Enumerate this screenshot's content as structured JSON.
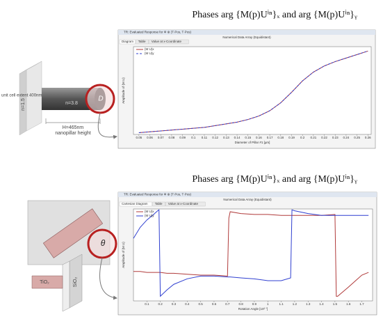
{
  "chart_data": [
    {
      "type": "line",
      "title": "Phases arg {M(p)Uⁱⁿ}ₓ and arg {M(p)Uⁱⁿ}ᵧ",
      "window_title": "TR: Evaluated Response for Φ ⊗ (T·Pos, T·Pos)",
      "subtitle": "Numerical Data Array (Equidistant)",
      "tabs": [
        "Diagram",
        "Table",
        "Value at x-Coordinate"
      ],
      "x_label": "Diameter of Pillar #1  [µm]",
      "y_label": "Amplitude of {M U}",
      "xlim": [
        0.045,
        0.263
      ],
      "ylim": [
        0,
        1
      ],
      "xticks": [
        0.05,
        0.06,
        0.07,
        0.08,
        0.09,
        0.1,
        0.11,
        0.12,
        0.13,
        0.14,
        0.15,
        0.16,
        0.17,
        0.18,
        0.19,
        0.2,
        0.21,
        0.22,
        0.23,
        0.24,
        0.25,
        0.26
      ],
      "x": [
        0.05,
        0.06,
        0.07,
        0.08,
        0.09,
        0.1,
        0.11,
        0.12,
        0.13,
        0.14,
        0.15,
        0.16,
        0.17,
        0.18,
        0.19,
        0.2,
        0.21,
        0.22,
        0.23,
        0.24,
        0.25,
        0.26
      ],
      "series": [
        {
          "name": "{M U}x",
          "color": "#b03a3a",
          "dash": false,
          "values": [
            0.02,
            0.03,
            0.04,
            0.05,
            0.06,
            0.07,
            0.08,
            0.1,
            0.12,
            0.14,
            0.17,
            0.21,
            0.27,
            0.36,
            0.48,
            0.61,
            0.71,
            0.78,
            0.83,
            0.87,
            0.91,
            0.95
          ]
        },
        {
          "name": "{M U}y",
          "color": "#2f3fd0",
          "dash": true,
          "values": [
            0.02,
            0.03,
            0.04,
            0.05,
            0.06,
            0.07,
            0.08,
            0.1,
            0.12,
            0.14,
            0.17,
            0.21,
            0.27,
            0.36,
            0.48,
            0.61,
            0.71,
            0.78,
            0.83,
            0.87,
            0.91,
            0.95
          ]
        }
      ]
    },
    {
      "type": "line",
      "title": "Phases arg {M(p)Uⁱⁿ}ₓ and arg {M(p)Uⁱⁿ}ᵧ",
      "window_title": "TR: Evaluated Response for Φ ⊗ (T·Pos, T·Pos)",
      "subtitle": "Numerical Data Array (Equidistant)",
      "tabs": [
        "Cartesian Diagram",
        "Table",
        "Value at x-Coordinate"
      ],
      "x_label": "Rotation Angle  [10² °]",
      "y_label": "Amplitude of {M U}",
      "xlim": [
        0,
        1.78
      ],
      "ylim": [
        0,
        1
      ],
      "xticks": [
        0.1,
        0.2,
        0.3,
        0.4,
        0.5,
        0.6,
        0.7,
        0.8,
        0.9,
        1,
        1.1,
        1.2,
        1.3,
        1.4,
        1.5,
        1.6,
        1.7
      ],
      "x": [
        0,
        0.05,
        0.1,
        0.15,
        0.18,
        0.19,
        0.2,
        0.25,
        0.3,
        0.4,
        0.5,
        0.6,
        0.7,
        0.71,
        0.72,
        0.8,
        0.9,
        1,
        1.1,
        1.17,
        1.18,
        1.2,
        1.3,
        1.4,
        1.5,
        1.51,
        1.52,
        1.6,
        1.7,
        1.75
      ],
      "series": [
        {
          "name": "{M U}x",
          "color": "#b03a3a",
          "dash": false,
          "values": [
            0.32,
            0.32,
            0.31,
            0.31,
            0.31,
            0.31,
            0.31,
            0.3,
            0.3,
            0.29,
            0.28,
            0.28,
            0.27,
            0.9,
            0.97,
            0.95,
            0.94,
            0.94,
            0.93,
            0.93,
            0.93,
            0.93,
            0.93,
            0.93,
            0.94,
            0.05,
            0.05,
            0.15,
            0.28,
            0.31
          ]
        },
        {
          "name": "{M U}y",
          "color": "#2f3fd0",
          "dash": false,
          "values": [
            0.68,
            0.8,
            0.88,
            0.94,
            0.98,
            0.99,
            0.05,
            0.12,
            0.18,
            0.24,
            0.27,
            0.27,
            0.26,
            0.26,
            0.26,
            0.25,
            0.24,
            0.22,
            0.22,
            0.25,
            0.99,
            0.98,
            0.95,
            0.93,
            0.93,
            0.93,
            0.93,
            0.93,
            0.93,
            0.93
          ]
        }
      ]
    }
  ],
  "illustrations": {
    "top": {
      "extent": "unit cell extent 400nm",
      "n_sub": "n=1.5",
      "n_pillar": "n=3.8",
      "diameter": "D",
      "height": "H=465nm",
      "height_note": "nanopillar height"
    },
    "bottom": {
      "angle": "θ",
      "tio2": "TiO₂",
      "sio2": "SiO₂"
    }
  }
}
